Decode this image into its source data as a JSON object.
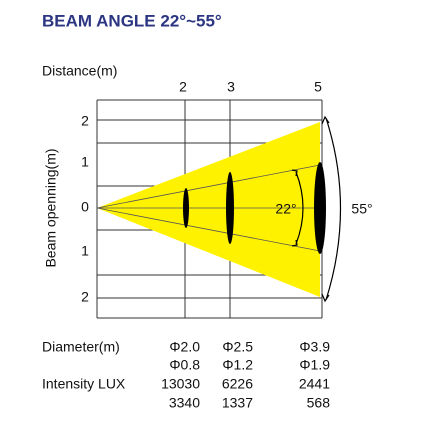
{
  "header": {
    "title": "BEAM ANGLE 22°~55°"
  },
  "diagram": {
    "distance_label": "Distance(m)",
    "distances": [
      "2",
      "3",
      "5"
    ],
    "opening_label": "Beam openning(m)",
    "opening_ticks": [
      "2",
      "1",
      "0",
      "1",
      "2"
    ],
    "inner_angle": "22°",
    "outer_angle": "55°"
  },
  "table": {
    "rows": [
      [
        "Diameter(m)",
        "Φ2.0",
        "Φ2.5",
        "Φ3.9"
      ],
      [
        "",
        "Φ0.8",
        "Φ1.2",
        "Φ1.9"
      ],
      [
        "Intensity LUX",
        "13030",
        "6226",
        "2441"
      ],
      [
        "",
        "3340",
        "1337",
        "568"
      ]
    ]
  }
}
